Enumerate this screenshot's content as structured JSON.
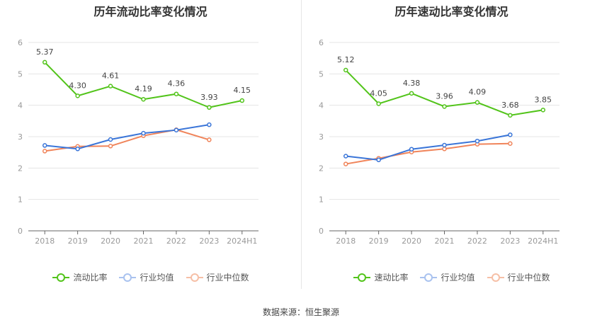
{
  "source_text": "数据来源：恒生聚源",
  "colors": {
    "main": "#52c41a",
    "avg": "#3a75d8",
    "median": "#f0845a",
    "grid": "#e5e5e5",
    "axis": "#666666"
  },
  "chart_data": [
    {
      "type": "line",
      "title": "历年流动比率变化情况",
      "categories": [
        "2018",
        "2019",
        "2020",
        "2021",
        "2022",
        "2023",
        "2024H1"
      ],
      "ylim": [
        0,
        6
      ],
      "yticks": [
        "0",
        "1",
        "2",
        "3",
        "4",
        "5",
        "6"
      ],
      "grid": true,
      "legend_position": "bottom",
      "series": [
        {
          "name": "流动比率",
          "values": [
            5.37,
            4.3,
            4.61,
            4.19,
            4.36,
            3.93,
            4.15
          ],
          "labels": [
            "5.37",
            "4.30",
            "4.61",
            "4.19",
            "4.36",
            "3.93",
            "4.15"
          ]
        },
        {
          "name": "行业均值",
          "values": [
            2.72,
            2.61,
            2.91,
            3.11,
            3.21,
            3.38,
            null
          ]
        },
        {
          "name": "行业中位数",
          "values": [
            2.54,
            2.69,
            2.7,
            3.03,
            3.22,
            2.9,
            null
          ]
        }
      ]
    },
    {
      "type": "line",
      "title": "历年速动比率变化情况",
      "categories": [
        "2018",
        "2019",
        "2020",
        "2021",
        "2022",
        "2023",
        "2024H1"
      ],
      "ylim": [
        0,
        6
      ],
      "yticks": [
        "0",
        "1",
        "2",
        "3",
        "4",
        "5",
        "6"
      ],
      "grid": true,
      "legend_position": "bottom",
      "series": [
        {
          "name": "速动比率",
          "values": [
            5.12,
            4.05,
            4.38,
            3.96,
            4.09,
            3.68,
            3.85
          ],
          "labels": [
            "5.12",
            "4.05",
            "4.38",
            "3.96",
            "4.09",
            "3.68",
            "3.85"
          ]
        },
        {
          "name": "行业均值",
          "values": [
            2.38,
            2.26,
            2.6,
            2.73,
            2.86,
            3.06,
            null
          ]
        },
        {
          "name": "行业中位数",
          "values": [
            2.13,
            2.31,
            2.51,
            2.61,
            2.76,
            2.78,
            null
          ]
        }
      ]
    }
  ]
}
